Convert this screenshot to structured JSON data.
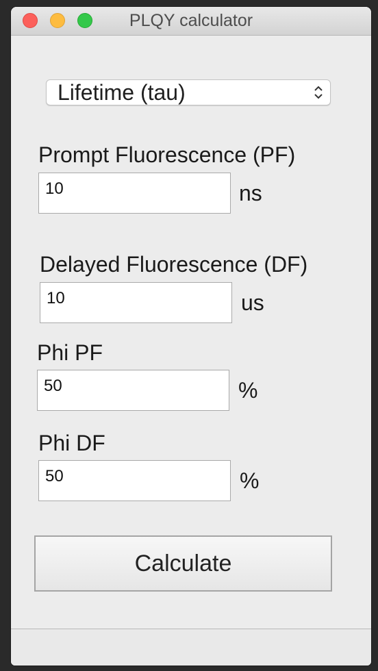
{
  "window": {
    "title": "PLQY calculator"
  },
  "mode_select": {
    "value": "Lifetime (tau)"
  },
  "fields": {
    "pf": {
      "label": "Prompt Fluorescence (PF)",
      "value": "10",
      "unit": "ns"
    },
    "df": {
      "label": "Delayed Fluorescence (DF)",
      "value": "10",
      "unit": "us"
    },
    "phi_pf": {
      "label": "Phi PF",
      "value": "50",
      "unit": "%"
    },
    "phi_df": {
      "label": "Phi DF",
      "value": "50",
      "unit": "%"
    }
  },
  "actions": {
    "calculate_label": "Calculate"
  }
}
